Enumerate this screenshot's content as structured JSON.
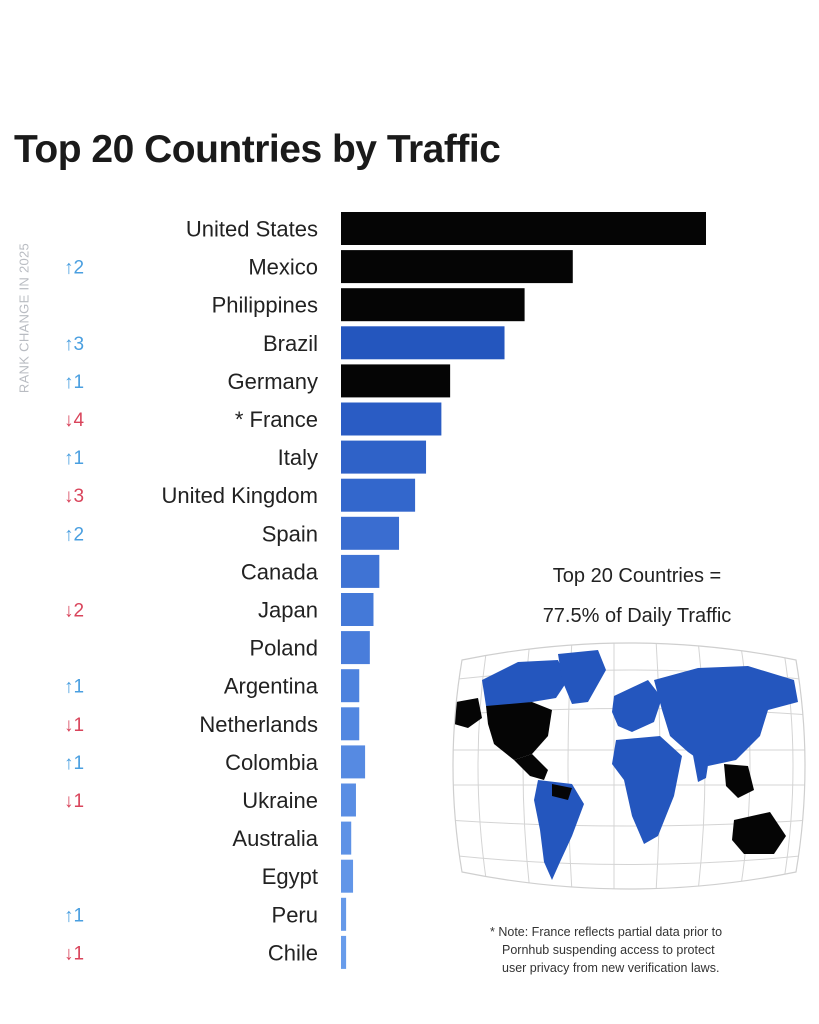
{
  "chart_data": {
    "type": "bar",
    "title": "Top 20 Countries by Traffic",
    "side_label": "RANK CHANGE IN 2025",
    "categories": [
      "United States",
      "Mexico",
      "Philippines",
      "Brazil",
      "Germany",
      "* France",
      "Italy",
      "United Kingdom",
      "Spain",
      "Canada",
      "Japan",
      "Poland",
      "Argentina",
      "Netherlands",
      "Colombia",
      "Ukraine",
      "Australia",
      "Egypt",
      "Peru",
      "Chile"
    ],
    "values": [
      100,
      63.5,
      50.3,
      44.8,
      29.9,
      27.5,
      23.3,
      20.3,
      15.9,
      10.5,
      8.9,
      7.9,
      5.0,
      5.0,
      6.6,
      4.1,
      2.8,
      3.3,
      1.4,
      1.4
    ],
    "bar_colors": [
      "#050505",
      "#050505",
      "#050505",
      "#2456be",
      "#050505",
      "#2a5cc4",
      "#2f62c8",
      "#3367cc",
      "#3a6dd0",
      "#3f73d4",
      "#4479d8",
      "#497ddb",
      "#4d82de",
      "#5287e1",
      "#568ae2",
      "#5a8ee4",
      "#5e92e6",
      "#6296e8",
      "#6599e9",
      "#689ceb"
    ],
    "rank_changes": [
      "",
      "↑2",
      "",
      "↑3",
      "↑1",
      "↓4",
      "↑1",
      "↓3",
      "↑2",
      "",
      "↓2",
      "",
      "↑1",
      "↓1",
      "↑1",
      "↓1",
      "",
      "",
      "↑1",
      "↓1"
    ],
    "change_colors": {
      "up": "#4a9fe0",
      "down": "#d9445b"
    }
  },
  "callout": {
    "line1": "Top 20 Countries =",
    "line2": "77.5% of Daily Traffic"
  },
  "note": {
    "line1": "* Note: France reflects partial data prior to",
    "line2": "Pornhub suspending access to protect",
    "line3": "user privacy from new verification laws."
  },
  "map": {
    "icon": "world-map",
    "colors": {
      "highlight": "#2456be",
      "top": "#050505",
      "grid": "#d4d4d4"
    }
  }
}
